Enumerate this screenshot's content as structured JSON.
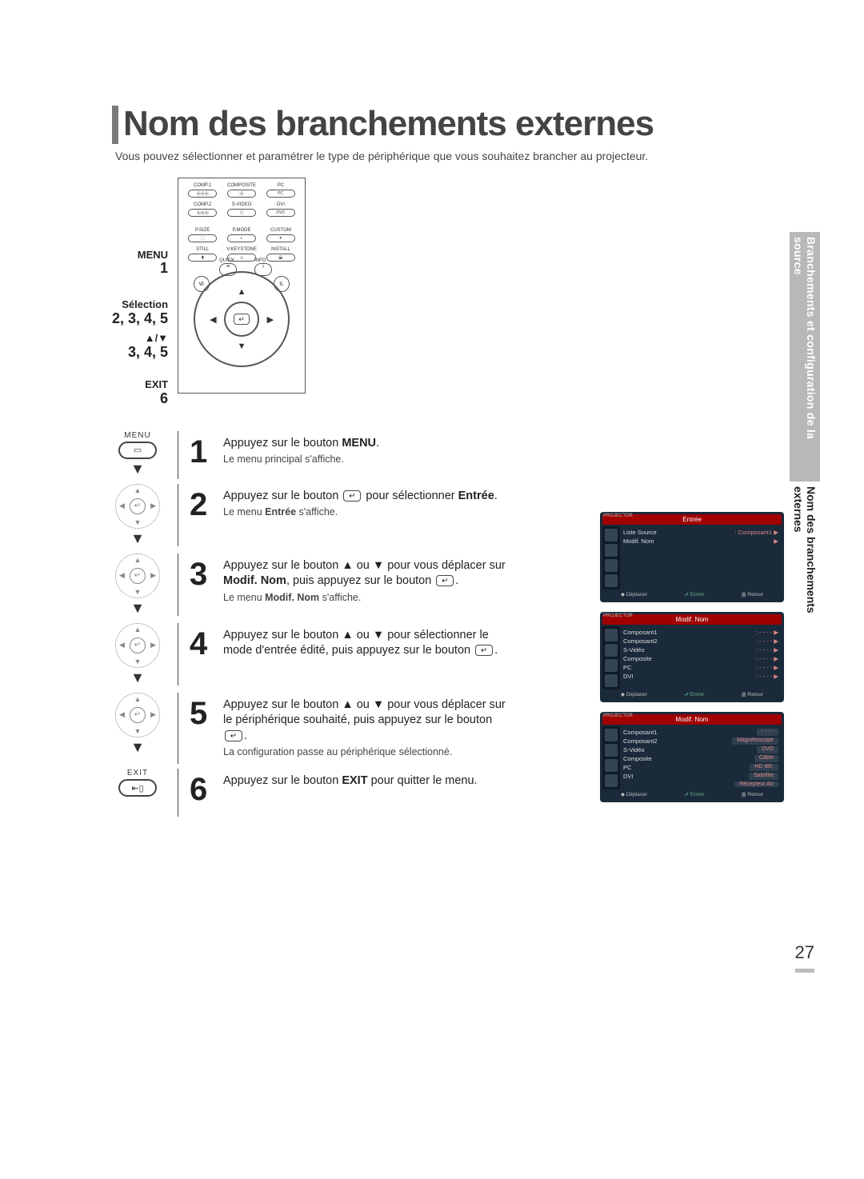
{
  "title": "Nom des branchements externes",
  "intro": "Vous pouvez sélectionner et paramétrer le type de périphérique que vous souhaitez brancher au projecteur.",
  "remote_labels": {
    "menu": "MENU",
    "menu_num": "1",
    "selection": "Sélection",
    "selection_num": "2, 3, 4, 5",
    "updown": "▲/▼",
    "updown_num": "3, 4, 5",
    "exit": "EXIT",
    "exit_num": "6"
  },
  "remote_buttons": {
    "r1": [
      "COMP.1",
      "COMPOSITE",
      "PC"
    ],
    "r1b": [
      "",
      "",
      "PC"
    ],
    "r2": [
      "COMP.2",
      "S-VIDEO",
      "DVI"
    ],
    "r2b": [
      "",
      "",
      "DVD"
    ],
    "r3": [
      "P.SIZE",
      "P.MODE",
      "CUSTOM"
    ],
    "r4": [
      "STILL",
      "V.KEYSTONE",
      "INSTALL"
    ],
    "quick": "QUICK",
    "info": "INFO",
    "menu": "MENU",
    "exit": "EXIT"
  },
  "steps": [
    {
      "num": "1",
      "icon_label": "MENU",
      "text_pre": "Appuyez sur le bouton ",
      "text_bold": "MENU",
      "text_post": ".",
      "sub": "Le menu principal s'affiche."
    },
    {
      "num": "2",
      "text_a": "Appuyez sur le bouton ",
      "text_b": " pour sélectionner ",
      "text_bold": "Entrée",
      "text_post": ".",
      "sub_pre": "Le menu ",
      "sub_bold": "Entrée",
      "sub_post": " s'affiche."
    },
    {
      "num": "3",
      "text_a": "Appuyez sur le bouton ▲ ou ▼ pour vous déplacer sur ",
      "text_bold": "Modif. Nom",
      "text_b": ", puis appuyez sur le bouton ",
      "text_post": ".",
      "sub_pre": "Le menu ",
      "sub_bold": "Modif. Nom",
      "sub_post": " s'affiche."
    },
    {
      "num": "4",
      "text_a": "Appuyez sur le bouton ▲ ou ▼ pour sélectionner le mode d'entrée édité, puis appuyez sur le bouton ",
      "text_post": "."
    },
    {
      "num": "5",
      "text_a": "Appuyez sur le bouton ▲ ou ▼ pour vous déplacer sur le périphérique souhaité, puis appuyez sur le bouton ",
      "text_post": ".",
      "sub": "La configuration passe au périphérique sélectionné."
    },
    {
      "num": "6",
      "icon_label": "EXIT",
      "text_pre": "Appuyez sur le bouton ",
      "text_bold": "EXIT",
      "text_post": " pour quitter le menu."
    }
  ],
  "osd": {
    "projector": "PROJECTOR",
    "foot": {
      "move": "Déplacer",
      "enter": "Entrer",
      "return": "Retour"
    },
    "screen1": {
      "title": "Entrée",
      "rows": [
        {
          "label": "Liste Source",
          "val": ": Composant1 ▶"
        },
        {
          "label": "Modif. Nom",
          "val": "▶"
        }
      ]
    },
    "screen2": {
      "title": "Modif. Nom",
      "rows": [
        {
          "label": "Composant1",
          "val": ": - - - -  ▶"
        },
        {
          "label": "Composant2",
          "val": ": - - - -  ▶"
        },
        {
          "label": "S-Vidéo",
          "val": ": - - - -  ▶"
        },
        {
          "label": "Composite",
          "val": ": - - - -  ▶"
        },
        {
          "label": "PC",
          "val": ": - - - -  ▶"
        },
        {
          "label": "DVI",
          "val": ": - - - -  ▶"
        }
      ]
    },
    "screen3": {
      "title": "Modif. Nom",
      "rows": [
        {
          "label": "Composant1",
          "opt": "- - - -"
        },
        {
          "label": "Composant2",
          "opt": "Magnétoscope"
        },
        {
          "label": "S-Vidéo",
          "opt": "DVD"
        },
        {
          "label": "Composite",
          "opt": "Câble"
        },
        {
          "label": "PC",
          "opt": "HD dét."
        },
        {
          "label": "DVI",
          "opt": "Satellite"
        },
        {
          "label": "",
          "opt": "Récepteur AV"
        }
      ]
    }
  },
  "sidebar": {
    "gray": "Branchements et configuration de la source",
    "black": "Nom des branchements externes"
  },
  "page_number": "27"
}
